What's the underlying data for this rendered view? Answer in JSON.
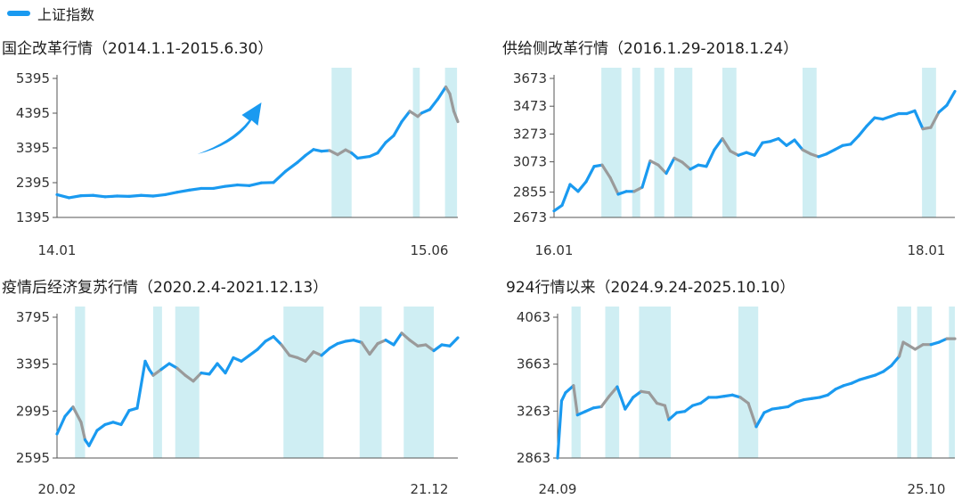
{
  "legend": {
    "label": "上证指数",
    "color": "#1a9af0"
  },
  "colors": {
    "line_main": "#1a9af0",
    "line_band": "#9a9a9a",
    "band_fill": "#cfeef3"
  },
  "chart_data": [
    {
      "type": "line",
      "title": "国企改革行情（2014.1.1-2015.6.30）",
      "y_ticks": [
        1395,
        2395,
        3395,
        4395,
        5395
      ],
      "x_ticks": [
        "14.01",
        "15.06"
      ],
      "ylim": [
        1395,
        5395
      ],
      "xlim": [
        0,
        1
      ],
      "arrow": "up-right",
      "shaded_periods": [
        [
          0.685,
          0.735
        ],
        [
          0.888,
          0.905
        ],
        [
          0.968,
          0.998
        ]
      ],
      "series": [
        {
          "x": [
            0,
            0.03,
            0.06,
            0.09,
            0.12,
            0.15,
            0.18,
            0.21,
            0.24,
            0.27,
            0.3,
            0.33,
            0.36,
            0.39,
            0.42,
            0.45,
            0.48,
            0.51,
            0.54,
            0.57,
            0.6,
            0.62,
            0.64,
            0.66,
            0.68,
            0.7,
            0.72,
            0.735,
            0.75,
            0.78,
            0.8,
            0.82,
            0.84,
            0.86,
            0.88,
            0.9,
            0.91,
            0.93,
            0.95,
            0.97,
            0.98,
            0.99,
            1.0
          ],
          "y": [
            2050,
            1960,
            2020,
            2030,
            1990,
            2010,
            2000,
            2030,
            2010,
            2050,
            2120,
            2180,
            2230,
            2230,
            2290,
            2330,
            2310,
            2390,
            2400,
            2720,
            2980,
            3180,
            3350,
            3300,
            3320,
            3200,
            3340,
            3250,
            3100,
            3150,
            3250,
            3550,
            3750,
            4150,
            4450,
            4300,
            4400,
            4500,
            4800,
            5150,
            4950,
            4450,
            4150
          ]
        }
      ]
    },
    {
      "type": "line",
      "title": "供给侧改革行情（2016.1.29-2018.1.24）",
      "y_ticks": [
        2673,
        2855,
        3073,
        3273,
        3473,
        3673
      ],
      "x_ticks": [
        "16.01",
        "18.01"
      ],
      "ylim": [
        2673,
        3673
      ],
      "xlim": [
        0,
        1
      ],
      "shaded_periods": [
        [
          0.118,
          0.168
        ],
        [
          0.195,
          0.215
        ],
        [
          0.25,
          0.275
        ],
        [
          0.3,
          0.345
        ],
        [
          0.42,
          0.455
        ],
        [
          0.62,
          0.655
        ],
        [
          0.918,
          0.953
        ]
      ],
      "series": [
        {
          "x": [
            0,
            0.02,
            0.04,
            0.06,
            0.08,
            0.1,
            0.12,
            0.14,
            0.16,
            0.18,
            0.2,
            0.22,
            0.24,
            0.26,
            0.28,
            0.3,
            0.32,
            0.34,
            0.36,
            0.38,
            0.4,
            0.42,
            0.44,
            0.46,
            0.48,
            0.5,
            0.52,
            0.54,
            0.56,
            0.58,
            0.6,
            0.62,
            0.64,
            0.66,
            0.68,
            0.7,
            0.72,
            0.74,
            0.76,
            0.78,
            0.8,
            0.82,
            0.84,
            0.86,
            0.88,
            0.9,
            0.92,
            0.94,
            0.96,
            0.98,
            1.0
          ],
          "y": [
            2720,
            2760,
            2910,
            2860,
            2930,
            3040,
            3050,
            2960,
            2840,
            2860,
            2860,
            2890,
            3080,
            3050,
            2990,
            3100,
            3070,
            3020,
            3050,
            3040,
            3160,
            3240,
            3150,
            3120,
            3140,
            3120,
            3210,
            3220,
            3240,
            3190,
            3230,
            3160,
            3130,
            3110,
            3130,
            3160,
            3190,
            3200,
            3260,
            3330,
            3390,
            3380,
            3400,
            3420,
            3420,
            3440,
            3310,
            3320,
            3430,
            3480,
            3580
          ]
        }
      ]
    },
    {
      "type": "line",
      "title": "疫情后经济复苏行情（2020.2.4-2021.12.13）",
      "y_ticks": [
        2595,
        2995,
        3395,
        3795
      ],
      "x_ticks": [
        "20.02",
        "21.12"
      ],
      "ylim": [
        2595,
        3795
      ],
      "xlim": [
        0,
        1
      ],
      "shaded_periods": [
        [
          0.045,
          0.07
        ],
        [
          0.24,
          0.262
        ],
        [
          0.295,
          0.355
        ],
        [
          0.565,
          0.665
        ],
        [
          0.755,
          0.81
        ],
        [
          0.865,
          0.94
        ]
      ],
      "series": [
        {
          "x": [
            0,
            0.02,
            0.04,
            0.06,
            0.07,
            0.08,
            0.1,
            0.12,
            0.14,
            0.16,
            0.18,
            0.2,
            0.22,
            0.23,
            0.24,
            0.26,
            0.28,
            0.3,
            0.32,
            0.34,
            0.36,
            0.38,
            0.4,
            0.42,
            0.44,
            0.46,
            0.48,
            0.5,
            0.52,
            0.54,
            0.56,
            0.58,
            0.6,
            0.62,
            0.64,
            0.66,
            0.68,
            0.7,
            0.72,
            0.74,
            0.76,
            0.78,
            0.8,
            0.82,
            0.84,
            0.86,
            0.88,
            0.9,
            0.92,
            0.94,
            0.96,
            0.98,
            1.0
          ],
          "y": [
            2800,
            2950,
            3030,
            2900,
            2750,
            2700,
            2830,
            2880,
            2900,
            2880,
            3000,
            3020,
            3420,
            3350,
            3300,
            3350,
            3400,
            3360,
            3300,
            3250,
            3320,
            3310,
            3400,
            3320,
            3450,
            3420,
            3470,
            3520,
            3590,
            3630,
            3560,
            3470,
            3450,
            3420,
            3500,
            3470,
            3530,
            3570,
            3590,
            3600,
            3580,
            3480,
            3570,
            3600,
            3560,
            3660,
            3600,
            3550,
            3560,
            3510,
            3560,
            3550,
            3620
          ]
        }
      ]
    },
    {
      "type": "line",
      "title": "924行情以来（2024.9.24-2025.10.10）",
      "y_ticks": [
        2863,
        3263,
        3663,
        4063
      ],
      "x_ticks": [
        "24.09",
        "25.10"
      ],
      "ylim": [
        2863,
        4063
      ],
      "xlim": [
        0,
        1
      ],
      "shaded_periods": [
        [
          0.035,
          0.058
        ],
        [
          0.12,
          0.155
        ],
        [
          0.205,
          0.285
        ],
        [
          0.455,
          0.505
        ],
        [
          0.855,
          0.89
        ],
        [
          0.905,
          0.942
        ],
        [
          0.985,
          1.0
        ]
      ],
      "series": [
        {
          "x": [
            0,
            0.01,
            0.02,
            0.04,
            0.05,
            0.07,
            0.09,
            0.11,
            0.13,
            0.15,
            0.17,
            0.19,
            0.21,
            0.23,
            0.25,
            0.27,
            0.28,
            0.3,
            0.32,
            0.34,
            0.36,
            0.38,
            0.4,
            0.42,
            0.44,
            0.46,
            0.48,
            0.5,
            0.52,
            0.54,
            0.56,
            0.58,
            0.6,
            0.62,
            0.64,
            0.66,
            0.68,
            0.7,
            0.72,
            0.74,
            0.76,
            0.78,
            0.8,
            0.82,
            0.84,
            0.86,
            0.87,
            0.88,
            0.9,
            0.92,
            0.94,
            0.96,
            0.98,
            1.0
          ],
          "y": [
            2863,
            3350,
            3420,
            3480,
            3230,
            3260,
            3290,
            3300,
            3390,
            3470,
            3280,
            3380,
            3430,
            3420,
            3330,
            3310,
            3190,
            3250,
            3260,
            3310,
            3330,
            3380,
            3380,
            3390,
            3400,
            3380,
            3330,
            3130,
            3250,
            3280,
            3290,
            3300,
            3340,
            3360,
            3370,
            3380,
            3400,
            3450,
            3480,
            3500,
            3530,
            3550,
            3570,
            3600,
            3650,
            3730,
            3850,
            3830,
            3790,
            3830,
            3830,
            3850,
            3880,
            3880
          ]
        }
      ]
    }
  ]
}
